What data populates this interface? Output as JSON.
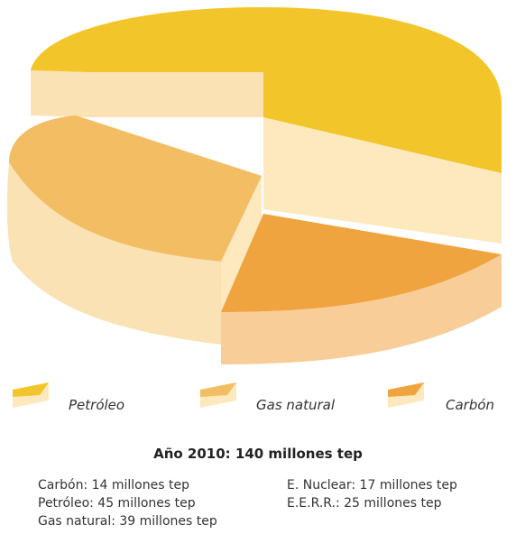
{
  "chart_data": {
    "type": "pie",
    "title": "Año 2010: 140 millones tep",
    "categories": [
      "Petróleo",
      "Gas natural",
      "Carbón"
    ],
    "values": [
      45,
      39,
      14
    ],
    "colors": {
      "Petróleo": "#f2c62a",
      "Gas natural": "#f3bd63",
      "Carbón": "#f0a43f",
      "side": "#fbe2b4",
      "face": "#fde9bd"
    },
    "legend": [
      {
        "label": "Petróleo",
        "color": "#f2c62a"
      },
      {
        "label": "Gas natural",
        "color": "#f3bd63"
      },
      {
        "label": "Carbón",
        "color": "#f0a43f"
      }
    ],
    "notes_left": [
      "Carbón: 14 millones tep",
      "Petróleo: 45 millones tep",
      "Gas natural: 39 millones tep"
    ],
    "notes_right": [
      "E. Nuclear: 17 millones tep",
      "E.E.R.R.: 25 millones tep"
    ]
  }
}
